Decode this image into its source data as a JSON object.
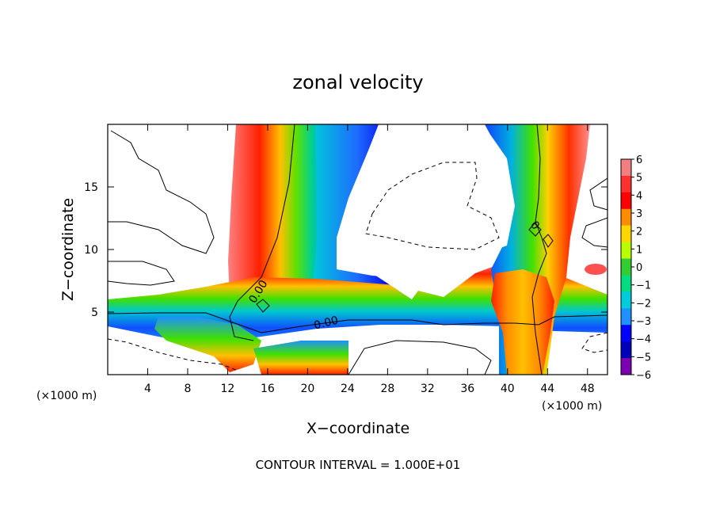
{
  "chart_data": {
    "type": "heatmap",
    "title": "zonal velocity",
    "xlabel": "X−coordinate",
    "ylabel": "Z−coordinate",
    "x_unit_left": "(×1000 m)",
    "x_unit_right": "(×1000 m)",
    "xlim": [
      0,
      50
    ],
    "ylim": [
      0,
      20
    ],
    "x_ticks": [
      4,
      8,
      12,
      16,
      20,
      24,
      28,
      32,
      36,
      40,
      44,
      48
    ],
    "x_tick_labels": [
      "4",
      "8",
      "12",
      "16",
      "20",
      "24",
      "28",
      "32",
      "36",
      "40",
      "44",
      "48"
    ],
    "y_ticks": [
      5,
      10,
      15
    ],
    "y_tick_labels": [
      "5",
      "10",
      "15"
    ],
    "contour_interval_text": "CONTOUR INTERVAL = 1.000E+01",
    "contour_labels": [
      "0.00",
      "0.00",
      "0"
    ],
    "colorbar": {
      "levels": [
        6,
        5,
        4,
        3,
        2,
        1,
        0,
        -1,
        -2,
        -3,
        -4,
        -5,
        -6
      ],
      "labels": [
        "6",
        "5",
        "4",
        "3",
        "2",
        "1",
        "0",
        "−1",
        "−2",
        "−3",
        "−4",
        "−5",
        "−6"
      ],
      "colors": [
        "#f08080",
        "#ff3030",
        "#ff0000",
        "#ff8c00",
        "#ffd700",
        "#b8ff00",
        "#32cd32",
        "#00dd80",
        "#00ccdd",
        "#1e90ff",
        "#0000ff",
        "#0000bb",
        "#7b00b0"
      ]
    }
  }
}
